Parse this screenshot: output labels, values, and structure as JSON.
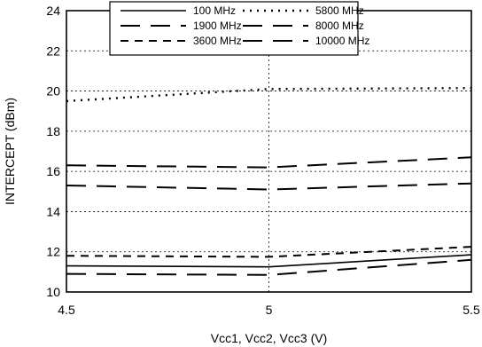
{
  "chart_data": {
    "type": "line",
    "title": "",
    "xlabel": "Vcc1, Vcc2, Vcc3 (V)",
    "ylabel": "INTERCEPT (dBm)",
    "xlim": [
      4.5,
      5.5
    ],
    "ylim": [
      10,
      24
    ],
    "xticks": [
      "4.5",
      "5",
      "5.5"
    ],
    "yticks": [
      "10",
      "12",
      "14",
      "16",
      "18",
      "20",
      "22",
      "24"
    ],
    "grid": true,
    "legend_position": "top-center",
    "x": [
      4.5,
      5.0,
      5.5
    ],
    "series": [
      {
        "name": "100 MHz",
        "values": [
          11.3,
          11.25,
          11.85
        ],
        "style": "solid-thin"
      },
      {
        "name": "1900 MHz",
        "values": [
          16.3,
          16.2,
          16.7
        ],
        "style": "long-dash"
      },
      {
        "name": "3600 MHz",
        "values": [
          11.8,
          11.75,
          12.25
        ],
        "style": "dash"
      },
      {
        "name": "5800 MHz",
        "values": [
          19.5,
          20.1,
          20.15
        ],
        "style": "dot"
      },
      {
        "name": "8000 MHz",
        "values": [
          10.9,
          10.85,
          11.6
        ],
        "style": "long-dash"
      },
      {
        "name": "10000 MHz",
        "values": [
          15.3,
          15.1,
          15.4
        ],
        "style": "long-dash"
      }
    ]
  }
}
